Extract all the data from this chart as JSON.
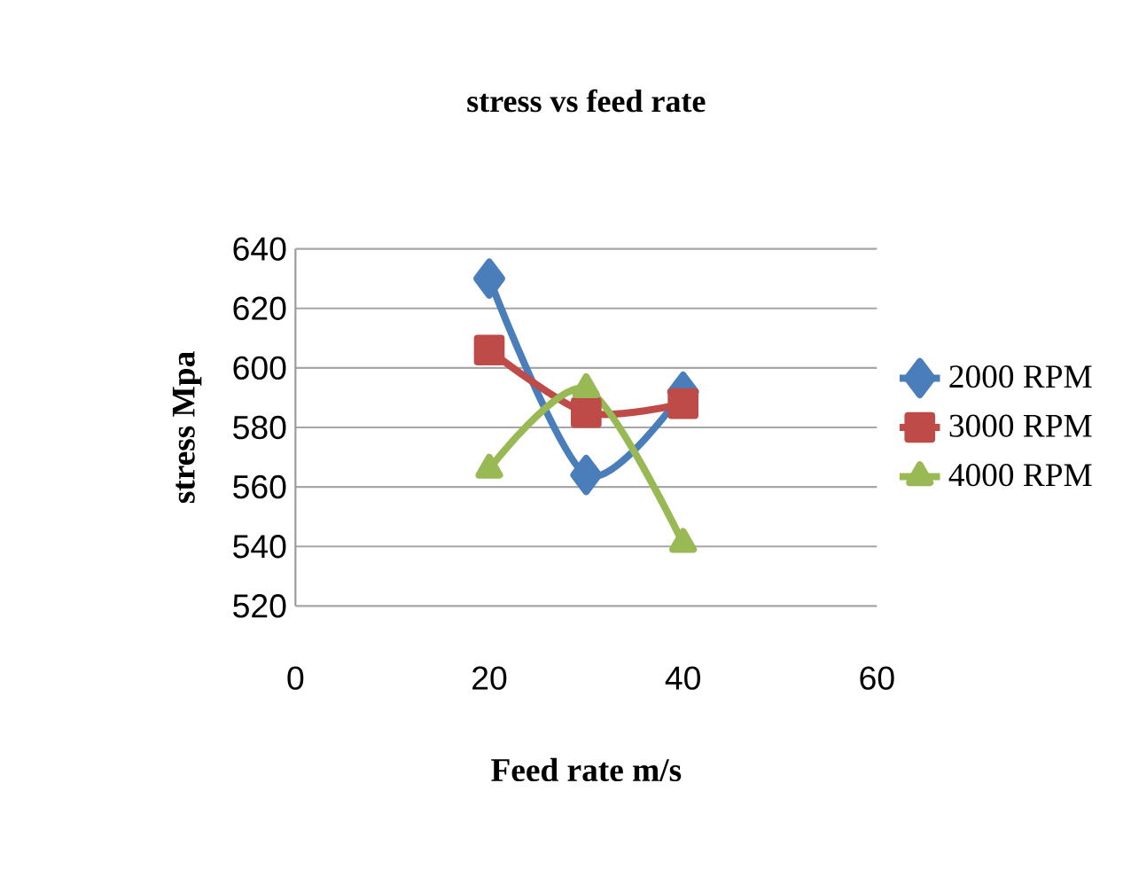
{
  "chart_data": {
    "type": "line",
    "title": "stress vs feed rate",
    "xlabel": "Feed rate m/s",
    "ylabel": "stress Mpa",
    "x": [
      20,
      30,
      40
    ],
    "series": [
      {
        "name": "2000 RPM",
        "color": "#4a7ebb",
        "values": [
          630,
          564,
          592
        ],
        "marker": "diamond"
      },
      {
        "name": "3000 RPM",
        "color": "#be4b48",
        "values": [
          606,
          585,
          588
        ],
        "marker": "square"
      },
      {
        "name": "4000 RPM",
        "color": "#98b954",
        "values": [
          566,
          593,
          541
        ],
        "marker": "triangle"
      }
    ],
    "xlim": [
      0,
      60
    ],
    "xticks": [
      0,
      20,
      40,
      60
    ],
    "ylim": [
      520,
      640
    ],
    "yticks": [
      520,
      540,
      560,
      580,
      600,
      620,
      640
    ],
    "grid": "y",
    "legend": "right",
    "line_style": "solid"
  }
}
